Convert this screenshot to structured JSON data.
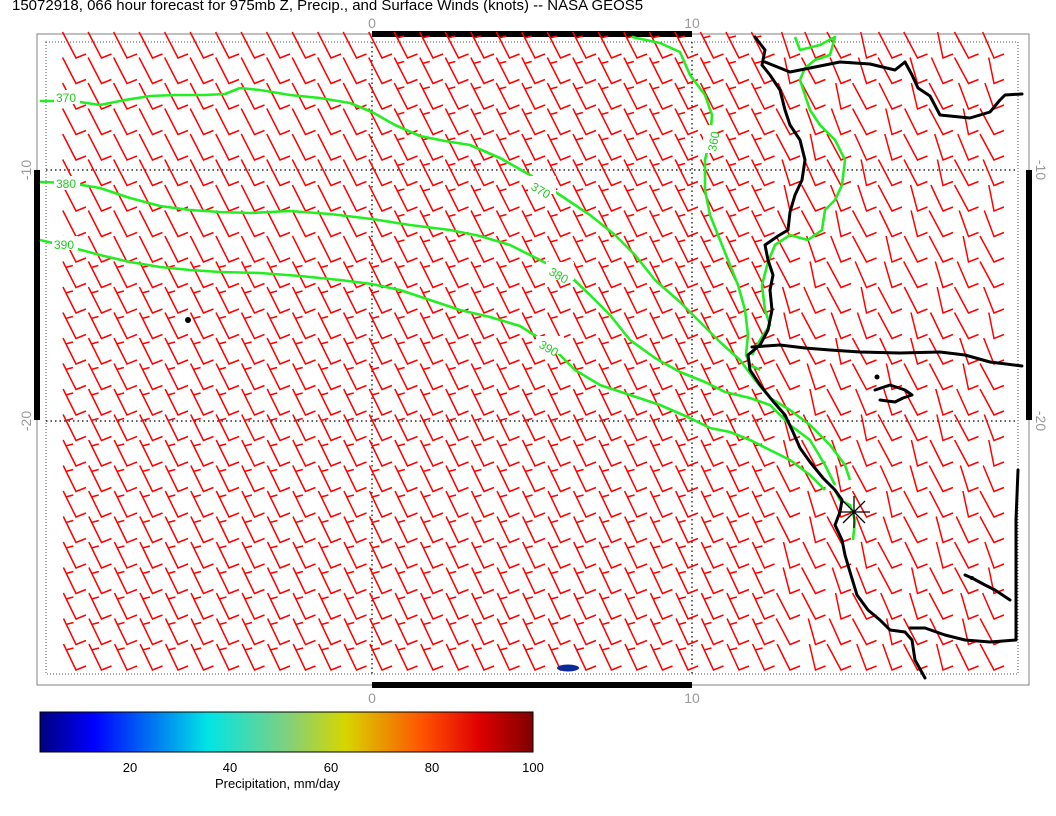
{
  "title": "15072918, 066 hour forecast for 975mb Z, Precip., and Surface Winds (knots) -- NASA GEOS5",
  "axes": {
    "lon_ticks": [
      {
        "value": 0,
        "label": "0"
      },
      {
        "value": 10,
        "label": "10"
      }
    ],
    "lat_ticks": [
      {
        "value": -10,
        "label": "-10"
      },
      {
        "value": -20,
        "label": "-20"
      }
    ]
  },
  "contours": [
    {
      "label": "370"
    },
    {
      "label": "380"
    },
    {
      "label": "390"
    },
    {
      "label": "360"
    },
    {
      "label": "370"
    },
    {
      "label": "380"
    },
    {
      "label": "390"
    }
  ],
  "colorbar": {
    "label": "Precipitation, mm/day",
    "ticks": [
      "20",
      "40",
      "60",
      "80",
      "100"
    ],
    "min": 0,
    "max": 100
  },
  "colors": {
    "wind_barbs": "#ff0000",
    "contours": "#22ee22",
    "coastline": "#000000",
    "precip_marker": "#0a2a9a"
  }
}
